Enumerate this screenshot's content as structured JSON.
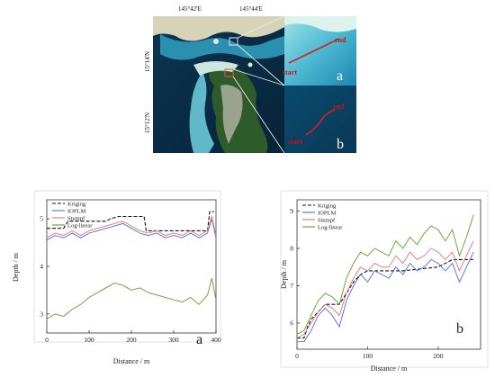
{
  "map": {
    "lon_labels": [
      "145°42'E",
      "145°44'E"
    ],
    "lat_labels": [
      "15°14'N",
      "15°12'N"
    ],
    "inset_a": {
      "start_label": "start",
      "end_label": "end",
      "panel_letter": "a"
    },
    "inset_b": {
      "start_label": "start",
      "end_label": "end",
      "panel_letter": "b"
    }
  },
  "chart_data": [
    {
      "type": "line",
      "panel": "a",
      "xlabel": "Distance / m",
      "ylabel": "Depth / m",
      "xlim": [
        0,
        400
      ],
      "ylim": [
        2.6,
        5.4
      ],
      "xticks": [
        0,
        100,
        200,
        300,
        400
      ],
      "yticks": [
        3,
        4,
        5
      ],
      "legend": "top-left",
      "series": [
        {
          "name": "Kriging",
          "color": "#111111",
          "dash": true,
          "x": [
            0,
            40,
            50,
            60,
            100,
            140,
            150,
            170,
            200,
            230,
            235,
            280,
            320,
            380,
            385,
            395
          ],
          "y": [
            4.8,
            4.8,
            4.95,
            4.95,
            4.95,
            4.95,
            5.0,
            5.05,
            5.05,
            5.05,
            4.75,
            4.75,
            4.75,
            4.75,
            5.15,
            5.15
          ]
        },
        {
          "name": "IOPLM",
          "color": "#4a6ee0",
          "x": [
            0,
            20,
            40,
            60,
            80,
            100,
            120,
            140,
            160,
            180,
            200,
            220,
            240,
            260,
            280,
            300,
            320,
            340,
            360,
            380,
            390,
            400
          ],
          "y": [
            4.55,
            4.65,
            4.6,
            4.7,
            4.6,
            4.7,
            4.75,
            4.8,
            4.85,
            4.9,
            4.8,
            4.7,
            4.65,
            4.7,
            4.6,
            4.65,
            4.6,
            4.7,
            4.6,
            4.7,
            5.0,
            4.6
          ]
        },
        {
          "name": "Stumpf",
          "color": "#f07070",
          "x": [
            0,
            20,
            40,
            60,
            80,
            100,
            120,
            140,
            160,
            180,
            200,
            220,
            240,
            260,
            280,
            300,
            320,
            340,
            360,
            380,
            390,
            400
          ],
          "y": [
            4.6,
            4.7,
            4.65,
            4.75,
            4.65,
            4.75,
            4.8,
            4.85,
            4.9,
            4.95,
            4.85,
            4.75,
            4.7,
            4.75,
            4.65,
            4.7,
            4.65,
            4.75,
            4.65,
            4.75,
            5.05,
            4.65
          ]
        },
        {
          "name": "Log-linear",
          "color": "#5aa02c",
          "x": [
            0,
            20,
            40,
            60,
            80,
            100,
            120,
            140,
            160,
            180,
            200,
            220,
            240,
            260,
            280,
            300,
            320,
            340,
            360,
            380,
            390,
            400
          ],
          "y": [
            2.9,
            3.0,
            2.95,
            3.1,
            3.2,
            3.35,
            3.45,
            3.55,
            3.65,
            3.6,
            3.5,
            3.55,
            3.45,
            3.4,
            3.35,
            3.3,
            3.25,
            3.35,
            3.2,
            3.4,
            3.75,
            3.3
          ]
        }
      ]
    },
    {
      "type": "line",
      "panel": "b",
      "xlabel": "Distance / m",
      "ylabel": "Depth / m",
      "xlim": [
        0,
        260
      ],
      "ylim": [
        5.3,
        9.3
      ],
      "xticks": [
        0,
        100,
        200
      ],
      "yticks": [
        6,
        7,
        8,
        9
      ],
      "legend": "top-left",
      "series": [
        {
          "name": "Kriging",
          "color": "#111111",
          "dash": true,
          "x": [
            0,
            10,
            15,
            20,
            30,
            40,
            50,
            60,
            70,
            80,
            90,
            100,
            150,
            200,
            220,
            240,
            250
          ],
          "y": [
            5.6,
            5.6,
            5.9,
            6.1,
            6.3,
            6.5,
            6.5,
            6.5,
            6.8,
            7.1,
            7.3,
            7.4,
            7.4,
            7.5,
            7.7,
            7.7,
            7.7
          ]
        },
        {
          "name": "IOPLM",
          "color": "#4a6ee0",
          "x": [
            0,
            10,
            20,
            30,
            40,
            50,
            60,
            70,
            80,
            90,
            100,
            110,
            120,
            130,
            140,
            150,
            160,
            170,
            180,
            190,
            200,
            210,
            220,
            230,
            240,
            250
          ],
          "y": [
            5.5,
            5.5,
            5.8,
            6.2,
            6.4,
            6.2,
            5.9,
            6.6,
            7.0,
            7.3,
            7.1,
            7.4,
            7.3,
            7.2,
            7.5,
            7.3,
            7.6,
            7.4,
            7.5,
            7.7,
            7.6,
            7.4,
            7.6,
            7.1,
            7.5,
            7.9
          ]
        },
        {
          "name": "Stumpf",
          "color": "#f07070",
          "x": [
            0,
            10,
            20,
            30,
            40,
            50,
            60,
            70,
            80,
            90,
            100,
            110,
            120,
            130,
            140,
            150,
            160,
            170,
            180,
            190,
            200,
            210,
            220,
            230,
            240,
            250
          ],
          "y": [
            5.6,
            5.7,
            6.0,
            6.3,
            6.5,
            6.4,
            6.2,
            6.8,
            7.2,
            7.5,
            7.4,
            7.6,
            7.5,
            7.5,
            7.8,
            7.6,
            7.9,
            7.7,
            7.8,
            8.0,
            7.9,
            7.7,
            7.9,
            7.4,
            7.8,
            8.2
          ]
        },
        {
          "name": "Log-linear",
          "color": "#5aa02c",
          "x": [
            0,
            10,
            20,
            30,
            40,
            50,
            60,
            70,
            80,
            90,
            100,
            110,
            120,
            130,
            140,
            150,
            160,
            170,
            180,
            190,
            200,
            210,
            220,
            230,
            240,
            250
          ],
          "y": [
            5.7,
            5.8,
            6.2,
            6.6,
            6.8,
            6.7,
            6.5,
            7.2,
            7.6,
            7.9,
            7.8,
            8.0,
            7.9,
            7.8,
            8.2,
            8.0,
            8.3,
            8.1,
            8.4,
            8.6,
            8.5,
            8.2,
            8.5,
            7.8,
            8.3,
            8.9
          ]
        }
      ]
    }
  ]
}
